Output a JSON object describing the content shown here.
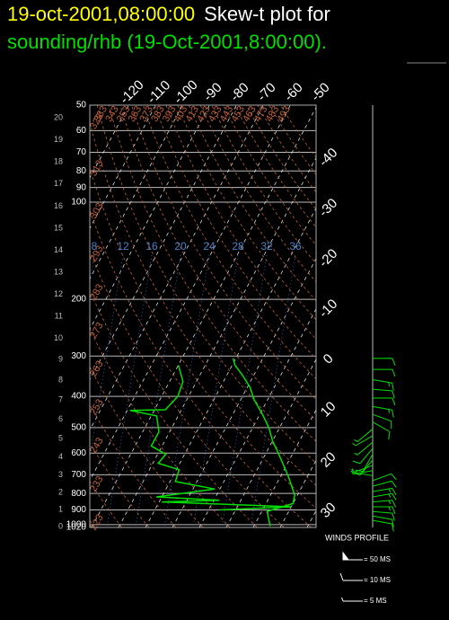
{
  "chart_data": {
    "type": "skewt",
    "title": "19-oct-2001,08:00:00",
    "title_suffix": "Skew-t plot for",
    "subtitle": "sounding/rhb (19-Oct-2001,8:00:00).",
    "ylim": [
      1020,
      50
    ],
    "yticks": [
      50,
      60,
      70,
      80,
      90,
      100,
      200,
      300,
      400,
      500,
      600,
      700,
      800,
      900,
      1000,
      1020
    ],
    "height_ticks": [
      0,
      1,
      2,
      3,
      4,
      5,
      6,
      7,
      8,
      9,
      10,
      11,
      12,
      13,
      14,
      15,
      16,
      17,
      18,
      19,
      20
    ],
    "xticks": [
      -120,
      -110,
      -100,
      -90,
      -80,
      -70,
      -60,
      -50,
      -40,
      -30,
      -20,
      -10,
      0,
      10,
      20,
      30
    ],
    "dry_adiabats": [
      223,
      233,
      243,
      253,
      263,
      273,
      283,
      293,
      303,
      313,
      323,
      333,
      343,
      353,
      363,
      373,
      383,
      393,
      403,
      413,
      423,
      433,
      443,
      453,
      463,
      473,
      483,
      493
    ],
    "mixing_ratio_labels": [
      8,
      12,
      16,
      20,
      24,
      28,
      32,
      36
    ],
    "series": [
      {
        "color": "#00e000",
        "pressure": [
          1010,
          910,
          860,
          810,
          710,
          605,
          550,
          500,
          455,
          410,
          375,
          345,
          320,
          305
        ],
        "values": [
          16,
          12,
          20,
          19,
          13,
          5,
          0,
          -4,
          -9,
          -15,
          -19,
          -24,
          -29,
          -31
        ]
      },
      {
        "color": "#00e000",
        "pressure": [
          320,
          360,
          400,
          440,
          442,
          460,
          515,
          570,
          605,
          645,
          675,
          735,
          775,
          820,
          840,
          850,
          880,
          900
        ],
        "values": [
          -50,
          -45,
          -44,
          -46,
          -59,
          -48,
          -44,
          -44,
          -37,
          -38,
          -29,
          -28,
          -12,
          -32,
          -8,
          -29,
          20,
          -6
        ]
      }
    ],
    "winds": {
      "pressure": [
        305,
        330,
        355,
        380,
        405,
        430,
        455,
        480,
        505,
        530,
        555,
        580,
        605,
        630,
        655,
        680,
        705,
        730,
        760,
        790,
        820,
        850,
        880,
        910,
        940,
        970
      ],
      "speed": [
        10,
        10,
        15,
        10,
        10,
        15,
        10,
        10,
        5,
        5,
        5,
        10,
        10,
        5,
        5,
        5,
        5,
        10,
        10,
        15,
        15,
        15,
        15,
        10,
        10,
        10
      ],
      "direction": [
        90,
        90,
        100,
        95,
        90,
        100,
        110,
        120,
        230,
        240,
        230,
        220,
        210,
        220,
        250,
        260,
        280,
        70,
        75,
        80,
        80,
        85,
        90,
        95,
        100,
        100
      ]
    },
    "wind_legend": {
      "title": "WINDS PROFILE",
      "items": [
        {
          "speed": 50,
          "label": "= 50 MS"
        },
        {
          "speed": 10,
          "label": "= 10 MS"
        },
        {
          "speed": 5,
          "label": "= 5 MS"
        }
      ]
    }
  }
}
